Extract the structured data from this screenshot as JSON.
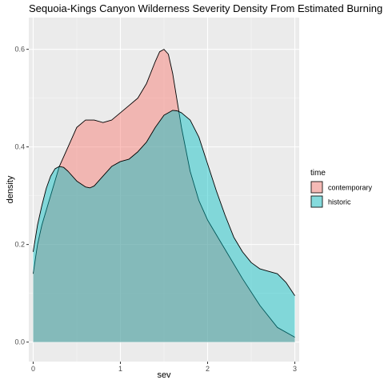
{
  "chart_data": {
    "type": "area",
    "title": "Sequoia-Kings Canyon Wilderness Severity Density From Estimated Burning",
    "xlabel": "sev",
    "ylabel": "density",
    "xlim": [
      -0.05,
      3.05
    ],
    "ylim": [
      -0.04,
      0.665
    ],
    "x_ticks": [
      0,
      1,
      2,
      3
    ],
    "x_tick_labels": [
      "0",
      "1",
      "2",
      "3"
    ],
    "y_ticks": [
      0.0,
      0.2,
      0.4,
      0.6
    ],
    "y_tick_labels": [
      "0.0",
      "0.2",
      "0.4",
      "0.6"
    ],
    "grid": true,
    "legend": {
      "title": "time",
      "placement": "right",
      "entries": [
        {
          "label": "contemporary",
          "color": "#F8766D"
        },
        {
          "label": "historic",
          "color": "#00BFC4"
        }
      ]
    },
    "series": [
      {
        "name": "contemporary",
        "color": "#F8766D",
        "x": [
          0,
          0.05,
          0.1,
          0.2,
          0.3,
          0.4,
          0.5,
          0.6,
          0.7,
          0.8,
          0.9,
          1.0,
          1.1,
          1.2,
          1.3,
          1.4,
          1.45,
          1.5,
          1.55,
          1.6,
          1.7,
          1.8,
          1.9,
          2.0,
          2.2,
          2.4,
          2.6,
          2.8,
          3.0
        ],
        "y": [
          0.14,
          0.2,
          0.24,
          0.3,
          0.36,
          0.4,
          0.44,
          0.455,
          0.455,
          0.45,
          0.455,
          0.47,
          0.485,
          0.5,
          0.53,
          0.575,
          0.595,
          0.6,
          0.59,
          0.55,
          0.44,
          0.35,
          0.29,
          0.25,
          0.19,
          0.13,
          0.075,
          0.03,
          0.01
        ]
      },
      {
        "name": "historic",
        "color": "#00BFC4",
        "x": [
          0,
          0.05,
          0.1,
          0.15,
          0.2,
          0.25,
          0.3,
          0.35,
          0.4,
          0.5,
          0.6,
          0.65,
          0.7,
          0.8,
          0.9,
          1.0,
          1.1,
          1.2,
          1.3,
          1.4,
          1.5,
          1.6,
          1.65,
          1.7,
          1.8,
          1.9,
          2.0,
          2.1,
          2.2,
          2.3,
          2.4,
          2.5,
          2.6,
          2.7,
          2.8,
          2.9,
          3.0
        ],
        "y": [
          0.185,
          0.24,
          0.28,
          0.315,
          0.34,
          0.355,
          0.36,
          0.358,
          0.35,
          0.33,
          0.318,
          0.316,
          0.32,
          0.34,
          0.36,
          0.37,
          0.375,
          0.39,
          0.41,
          0.44,
          0.465,
          0.475,
          0.474,
          0.47,
          0.455,
          0.42,
          0.365,
          0.31,
          0.26,
          0.215,
          0.185,
          0.163,
          0.15,
          0.145,
          0.14,
          0.122,
          0.095
        ]
      }
    ]
  }
}
